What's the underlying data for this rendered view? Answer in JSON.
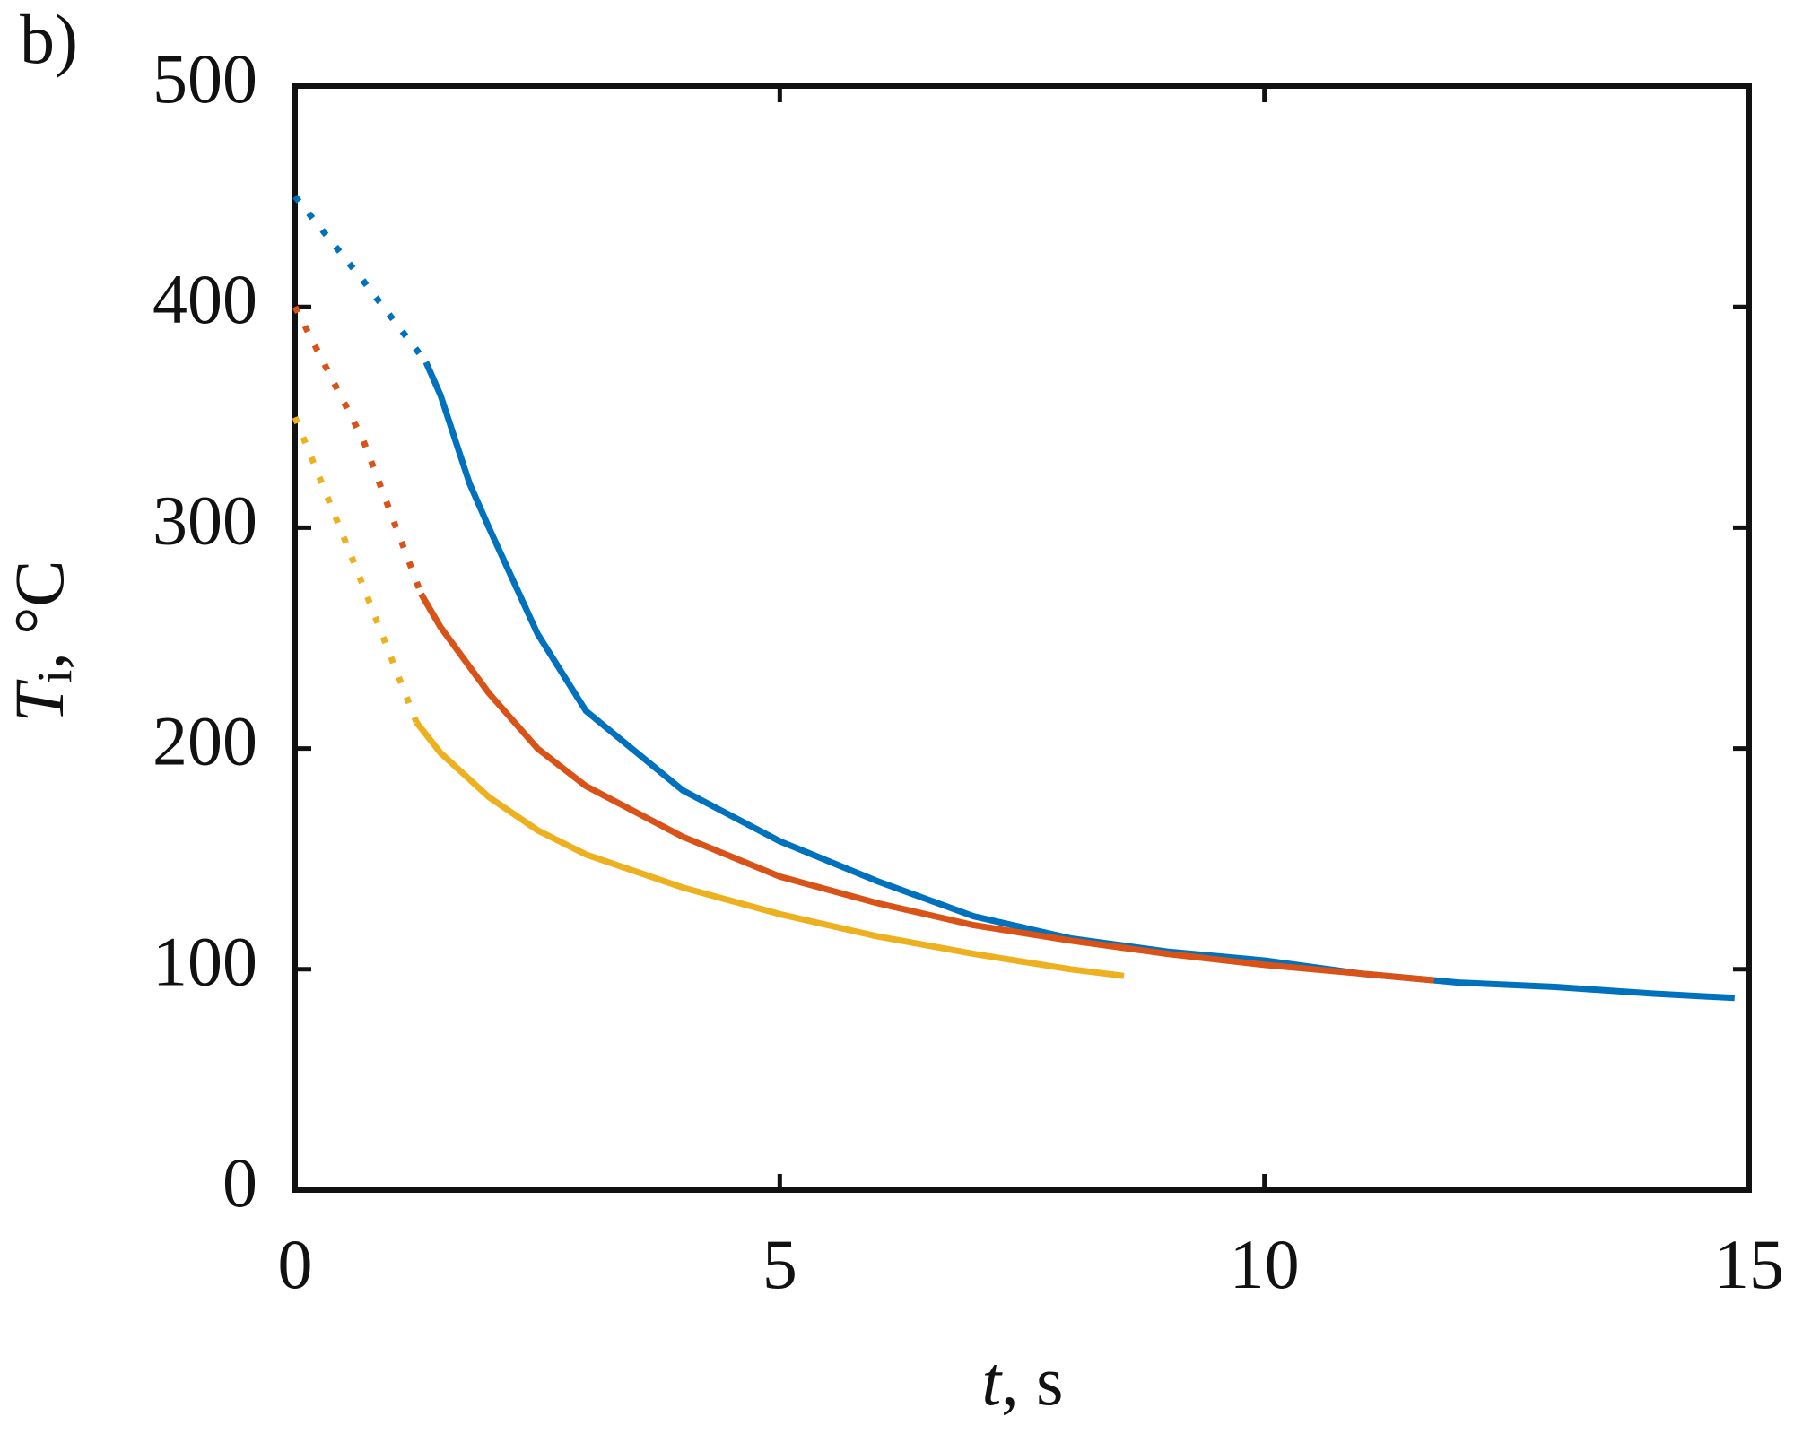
{
  "chart_data": {
    "type": "line",
    "panel_label": "b)",
    "x_label": {
      "symbol": "t",
      "unit": ", s"
    },
    "y_label": {
      "symbol": "T",
      "subscript": "i",
      "unit": ", °C"
    },
    "xlim": [
      0,
      15
    ],
    "xticks": [
      0,
      5,
      10,
      15
    ],
    "ylim": [
      0,
      500
    ],
    "yticks": [
      0,
      100,
      200,
      300,
      400,
      500
    ],
    "grid": false,
    "series": [
      {
        "color": "#0072BD",
        "style": "dotted",
        "x": [
          0,
          0.7,
          1.35
        ],
        "values": [
          450,
          412,
          375
        ]
      },
      {
        "color": "#0072BD",
        "style": "solid",
        "x": [
          1.35,
          1.5,
          1.8,
          2,
          2.5,
          3,
          4,
          5,
          6,
          7,
          8,
          9,
          10,
          11,
          12,
          13,
          14,
          14.85
        ],
        "values": [
          375,
          360,
          320,
          300,
          252,
          217,
          181,
          158,
          140,
          124,
          114,
          108,
          104,
          98,
          94,
          92,
          89,
          87
        ]
      },
      {
        "color": "#D95319",
        "style": "dotted",
        "x": [
          0,
          0.7,
          1.3
        ],
        "values": [
          400,
          340,
          270
        ]
      },
      {
        "color": "#D95319",
        "style": "solid",
        "x": [
          1.3,
          1.5,
          2,
          2.5,
          3,
          4,
          5,
          6,
          7,
          8,
          9,
          10,
          11,
          11.75
        ],
        "values": [
          270,
          255,
          225,
          200,
          183,
          160,
          142,
          130,
          120,
          113,
          107,
          102,
          98,
          95
        ]
      },
      {
        "color": "#EDB120",
        "style": "dotted",
        "x": [
          0,
          0.6,
          1.25
        ],
        "values": [
          350,
          285,
          212
        ]
      },
      {
        "color": "#EDB120",
        "style": "solid",
        "x": [
          1.25,
          1.5,
          2,
          2.5,
          3,
          4,
          5,
          6,
          7,
          8,
          8.55
        ],
        "values": [
          212,
          198,
          178,
          163,
          152,
          137,
          125,
          115,
          107,
          100,
          97
        ]
      }
    ]
  }
}
